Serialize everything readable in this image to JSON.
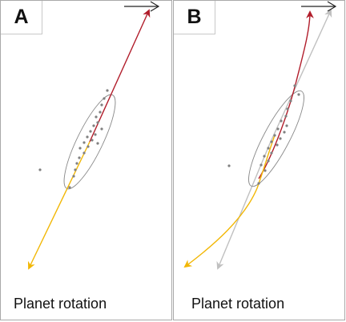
{
  "panels": [
    {
      "label": "A",
      "caption": "Planet rotation"
    },
    {
      "label": "B",
      "caption": "Planet rotation"
    }
  ],
  "colors": {
    "red_arrow": "#b11d2b",
    "yellow_arrow": "#f2b705",
    "grey_arrow": "#c0c0c0",
    "points": "#808080",
    "ellipse": "#8a8a8a",
    "border": "#a9a9a9"
  },
  "icons": [
    "right-arrow-icon"
  ]
}
